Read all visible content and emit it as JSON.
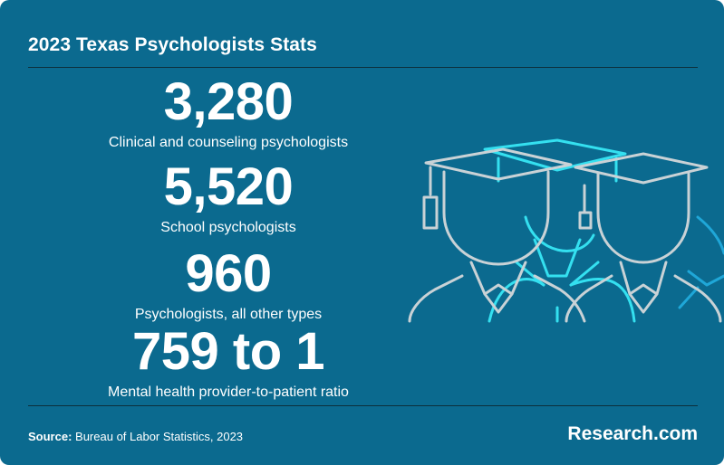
{
  "title": "2023 Texas Psychologists Stats",
  "stats": [
    {
      "value": "3,280",
      "label": "Clinical and counseling psychologists"
    },
    {
      "value": "5,520",
      "label": "School psychologists"
    },
    {
      "value": "960",
      "label": "Psychologists, all other types"
    },
    {
      "value": "759 to 1",
      "label": "Mental health provider-to-patient ratio"
    }
  ],
  "footer": {
    "source_label": "Source:",
    "source_text": "Bureau of Labor Statistics, 2023",
    "brand": "Research.com"
  },
  "colors": {
    "background": "#0b6a8f",
    "graduate_outline": "#c9d2d6",
    "graduate_highlight": "#34e0f0",
    "graduate_blue": "#1fa7d8"
  },
  "illustration": {
    "icon": "graduates-in-caps-icon"
  }
}
